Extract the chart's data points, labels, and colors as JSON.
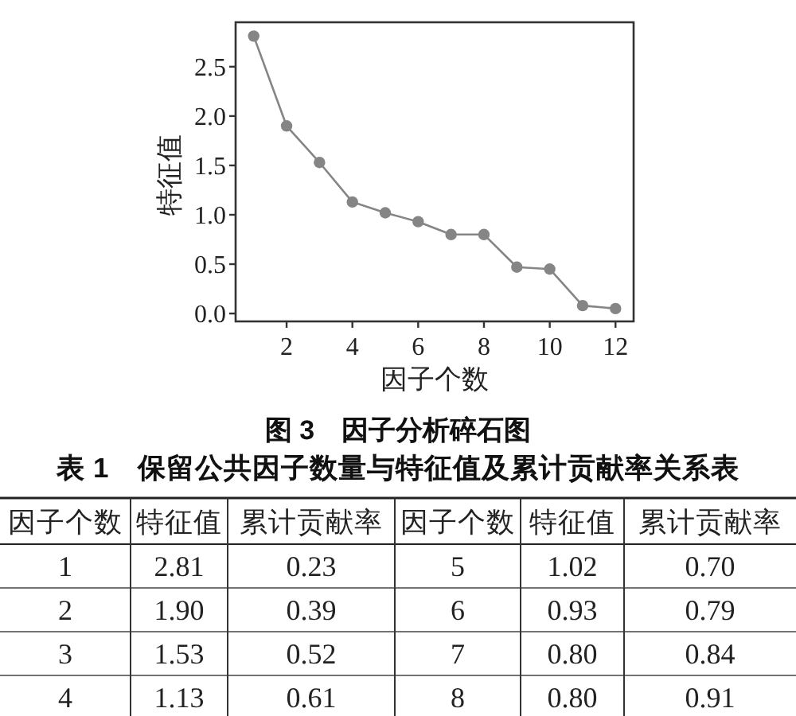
{
  "chart_data": [
    {
      "type": "line",
      "title": "图 3　因子分析碎石图",
      "xlabel": "因子个数",
      "ylabel": "特征值",
      "x": [
        1,
        2,
        3,
        4,
        5,
        6,
        7,
        8,
        9,
        10,
        11,
        12
      ],
      "values": [
        2.81,
        1.9,
        1.53,
        1.13,
        1.02,
        0.93,
        0.8,
        0.8,
        0.47,
        0.45,
        0.08,
        0.05
      ],
      "color": "#858585",
      "marker": "circle",
      "xlim": [
        0.45,
        12.55
      ],
      "ylim": [
        -0.08,
        2.95
      ],
      "xticks": [
        2,
        4,
        6,
        8,
        10,
        12
      ],
      "yticks": [
        {
          "value": 0,
          "label": "0.0"
        },
        0.5,
        {
          "value": 1,
          "label": "1.0"
        },
        1.5,
        {
          "value": 2,
          "label": "2.0"
        },
        2.5
      ]
    },
    {
      "type": "heatmap",
      "title": "表 1　保留公共因子数量与特征值及累计贡献率关系表",
      "ylabel": "因子个数",
      "y_categories": [
        "1",
        "2",
        "3",
        "4"
      ],
      "categories": [
        "特征值",
        "累计贡献率",
        "因子个数",
        "特征值",
        "累计贡献率"
      ],
      "cells": [
        [
          2.81,
          0.23,
          5,
          1.02,
          0.7
        ],
        [
          1.9,
          0.39,
          6,
          0.93,
          0.79
        ],
        [
          1.53,
          0.52,
          7,
          0.8,
          0.84
        ],
        [
          1.13,
          0.61,
          8,
          0.8,
          0.91
        ]
      ],
      "cell_labels": [
        [
          "2.81",
          "0.23",
          "5",
          "1.02",
          "0.70"
        ],
        [
          "1.90",
          "0.39",
          "6",
          "0.93",
          "0.79"
        ],
        [
          "1.53",
          "0.52",
          "7",
          "0.80",
          "0.84"
        ],
        [
          "1.13",
          "0.61",
          "8",
          "0.80",
          "0.91"
        ]
      ]
    }
  ]
}
